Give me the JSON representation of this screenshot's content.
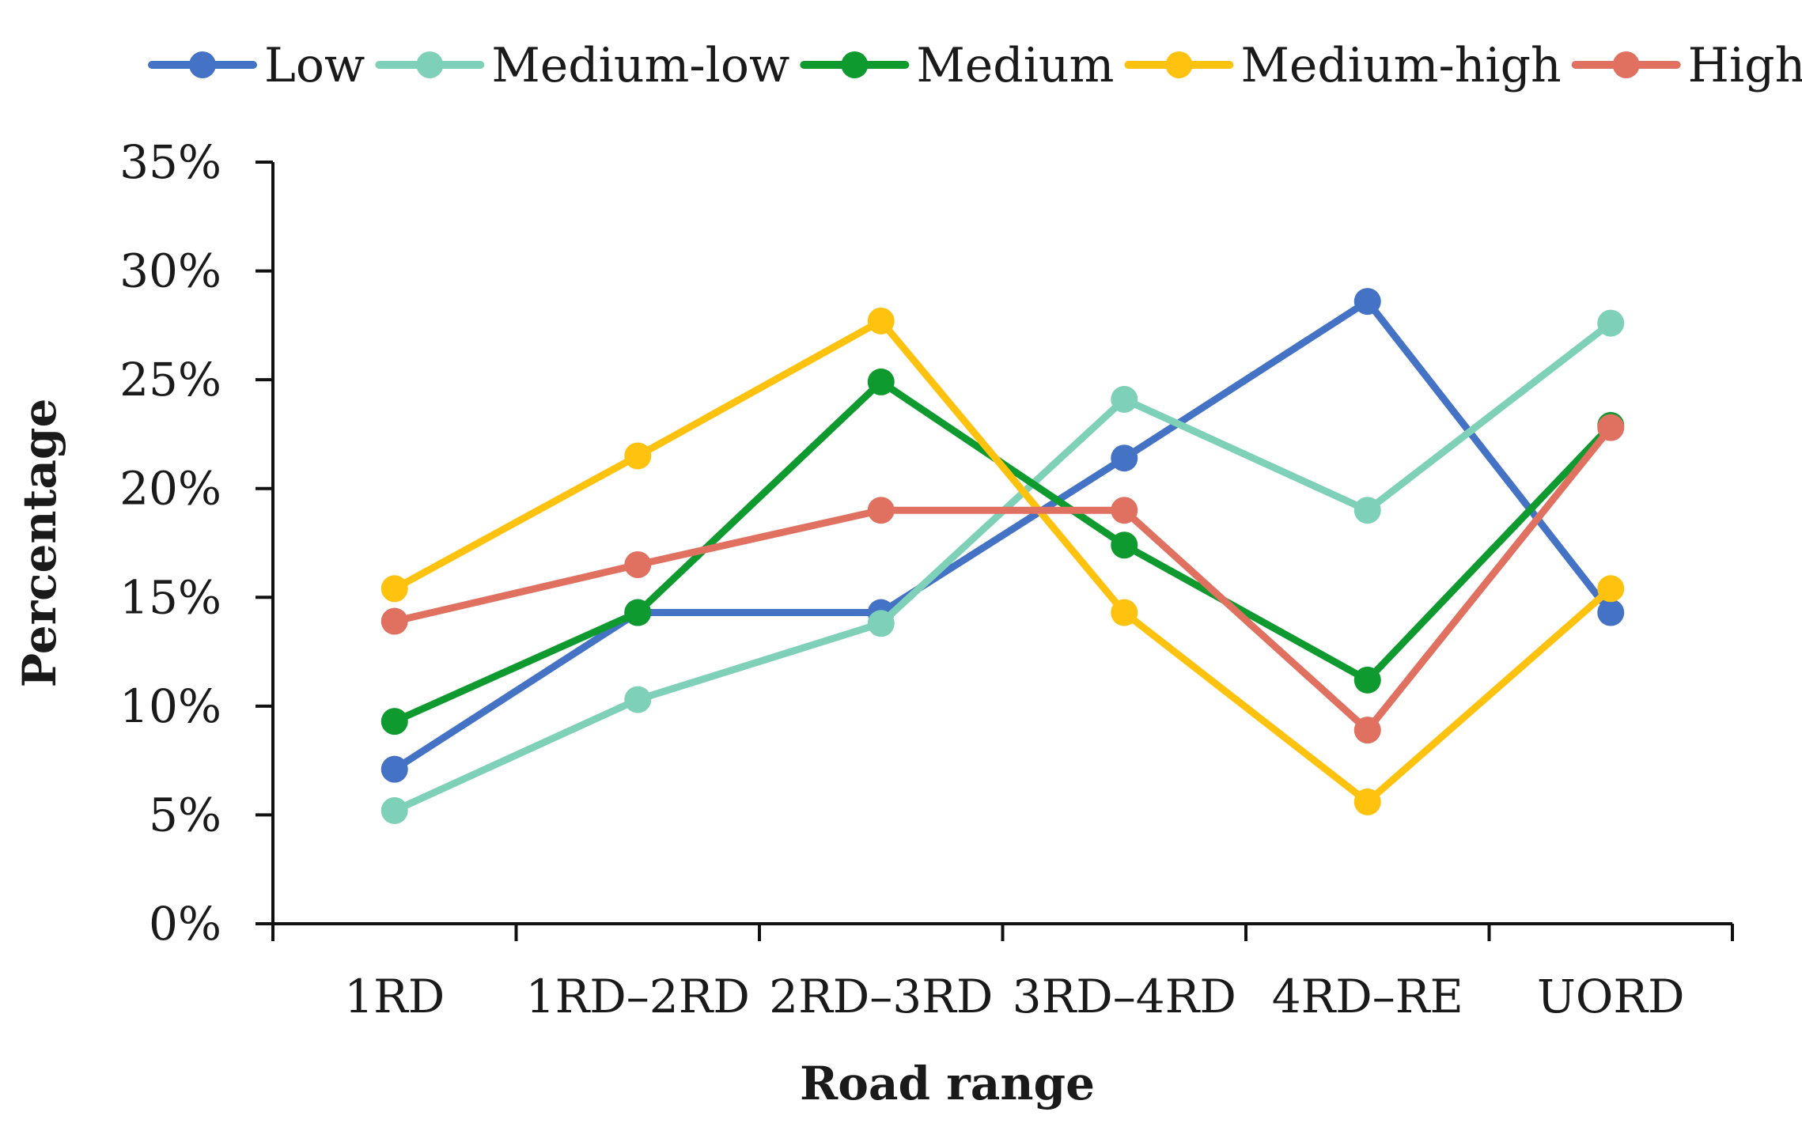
{
  "chart_data": {
    "type": "line",
    "title": "",
    "xlabel": "Road range",
    "ylabel": "Percentage",
    "categories": [
      "1RD",
      "1RD–2RD",
      "2RD–3RD",
      "3RD–4RD",
      "4RD–RE",
      "UORD"
    ],
    "ylim": [
      0,
      35
    ],
    "yticks": [
      0,
      5,
      10,
      15,
      20,
      25,
      30,
      35
    ],
    "ytick_labels": [
      "0%",
      "5%",
      "10%",
      "15%",
      "20%",
      "25%",
      "30%",
      "35%"
    ],
    "legend_position": "top",
    "grid": false,
    "series": [
      {
        "name": "Low",
        "color": "#4472C4",
        "values": [
          7.1,
          14.3,
          14.3,
          21.4,
          28.6,
          14.3
        ]
      },
      {
        "name": "Medium-low",
        "color": "#7ED1B8",
        "values": [
          5.2,
          10.3,
          13.8,
          24.1,
          19.0,
          27.6
        ]
      },
      {
        "name": "Medium",
        "color": "#0E9A2E",
        "values": [
          9.3,
          14.3,
          24.9,
          17.4,
          11.2,
          22.9
        ]
      },
      {
        "name": "Medium-high",
        "color": "#FFC20E",
        "values": [
          15.4,
          21.5,
          27.7,
          14.3,
          5.6,
          15.4
        ]
      },
      {
        "name": "High",
        "color": "#E07060",
        "values": [
          13.9,
          16.5,
          19.0,
          19.0,
          8.9,
          22.8
        ]
      }
    ]
  }
}
